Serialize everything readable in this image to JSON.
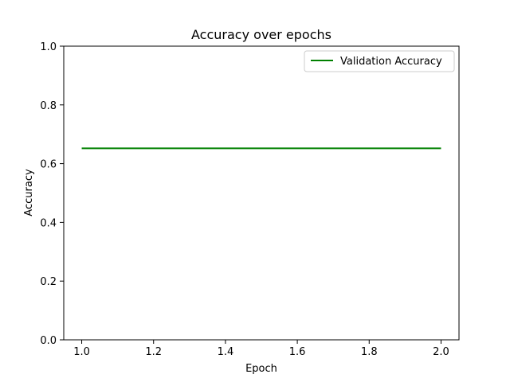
{
  "chart_data": {
    "type": "line",
    "title": "Accuracy over epochs",
    "xlabel": "Epoch",
    "ylabel": "Accuracy",
    "xlim": [
      0.95,
      2.05
    ],
    "ylim": [
      0.0,
      1.0
    ],
    "x_ticks": [
      1.0,
      1.2,
      1.4,
      1.6,
      1.8,
      2.0
    ],
    "x_tick_labels": [
      "1.0",
      "1.2",
      "1.4",
      "1.6",
      "1.8",
      "2.0"
    ],
    "y_ticks": [
      0.0,
      0.2,
      0.4,
      0.6,
      0.8,
      1.0
    ],
    "y_tick_labels": [
      "0.0",
      "0.2",
      "0.4",
      "0.6",
      "0.8",
      "1.0"
    ],
    "grid": false,
    "legend_position": "top-right",
    "series": [
      {
        "name": "Validation Accuracy",
        "color": "#008000",
        "x": [
          1,
          2
        ],
        "y": [
          0.652,
          0.652
        ]
      }
    ]
  }
}
